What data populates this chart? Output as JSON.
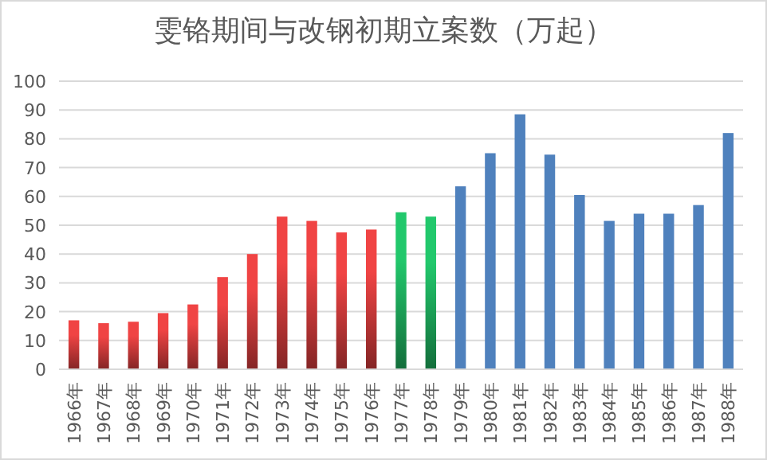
{
  "chart_data": {
    "type": "bar",
    "title": "雯铬期间与改钢初期立案数（万起）",
    "categories": [
      "1966年",
      "1967年",
      "1968年",
      "1969年",
      "1970年",
      "1971年",
      "1972年",
      "1973年",
      "1974年",
      "1975年",
      "1976年",
      "1977年",
      "1978年",
      "1979年",
      "1980年",
      "1981年",
      "1982年",
      "1983年",
      "1984年",
      "1985年",
      "1986年",
      "1987年",
      "1988年"
    ],
    "values": [
      17,
      16,
      16.5,
      19.5,
      22.5,
      32,
      40,
      53,
      51.5,
      47.5,
      48.5,
      54.5,
      53,
      63.5,
      75,
      88.5,
      74.5,
      60.5,
      51.5,
      54,
      54,
      57,
      82
    ],
    "colors": [
      "#f04444",
      "#f04444",
      "#f04444",
      "#f04444",
      "#f04444",
      "#f04444",
      "#f04444",
      "#f04444",
      "#f04444",
      "#f04444",
      "#f04444",
      "#22c86c",
      "#22c86c",
      "#4f81bd",
      "#4f81bd",
      "#4f81bd",
      "#4f81bd",
      "#4f81bd",
      "#4f81bd",
      "#4f81bd",
      "#4f81bd",
      "#4f81bd",
      "#4f81bd"
    ],
    "ylim": [
      0,
      100
    ],
    "yticks": [
      0,
      10,
      20,
      30,
      40,
      50,
      60,
      70,
      80,
      90,
      100
    ],
    "grid": true
  }
}
